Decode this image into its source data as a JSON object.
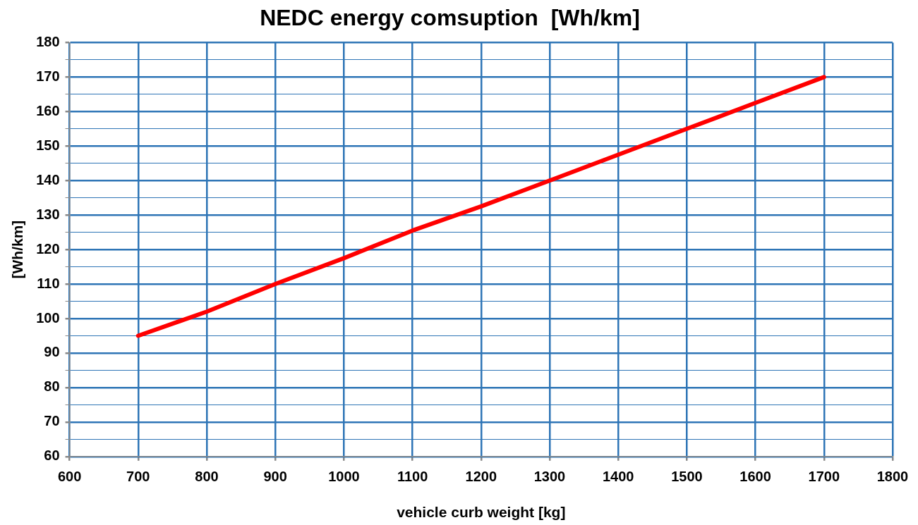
{
  "chart_data": {
    "type": "line",
    "title": "NEDC energy comsuption  [Wh/km]",
    "xlabel": "vehicle curb weight [kg]",
    "ylabel": "[Wh/km]",
    "x": [
      700,
      800,
      900,
      1000,
      1100,
      1200,
      1300,
      1400,
      1500,
      1600,
      1700
    ],
    "series": [
      {
        "color": "#ff0000",
        "values": [
          95,
          102,
          110,
          117.5,
          125.5,
          132.5,
          140,
          147.5,
          155,
          162.5,
          170
        ]
      }
    ],
    "xlim": [
      600,
      1800
    ],
    "xticks": [
      600,
      700,
      800,
      900,
      1000,
      1100,
      1200,
      1300,
      1400,
      1500,
      1600,
      1700,
      1800
    ],
    "ylim": [
      60,
      180
    ],
    "yticks": [
      60,
      {
        "value": 65,
        "label": null
      },
      70,
      {
        "value": 75,
        "label": null
      },
      80,
      {
        "value": 85,
        "label": null
      },
      90,
      {
        "value": 95,
        "label": null
      },
      100,
      {
        "value": 105,
        "label": null
      },
      110,
      {
        "value": 115,
        "label": null
      },
      120,
      {
        "value": 125,
        "label": null
      },
      130,
      {
        "value": 135,
        "label": null
      },
      140,
      {
        "value": 145,
        "label": null
      },
      150,
      {
        "value": 155,
        "label": null
      },
      160,
      {
        "value": 165,
        "label": null
      },
      170,
      {
        "value": 175,
        "label": null
      },
      180
    ],
    "grid": true,
    "legend": false,
    "marker": "none",
    "line_style": "solid"
  }
}
